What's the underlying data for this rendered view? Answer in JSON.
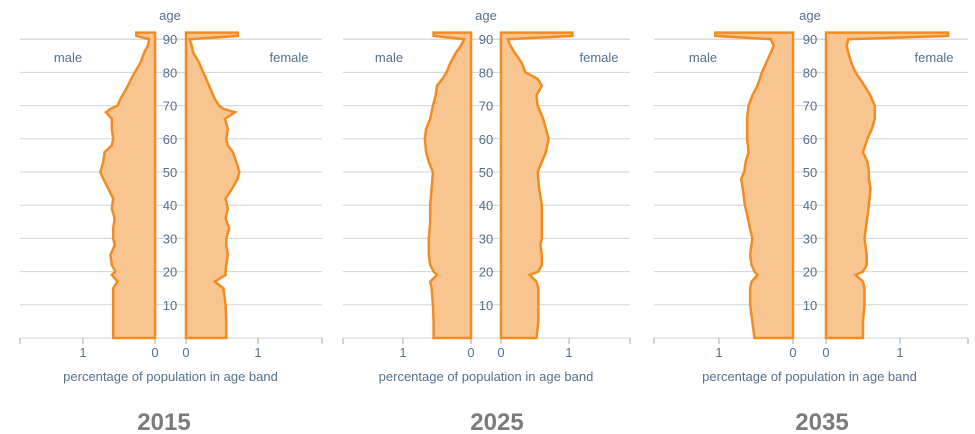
{
  "chart_data": [
    {
      "type": "area",
      "subtype": "population-pyramid",
      "year_label": "2015",
      "age_axis_label": "age",
      "age_ticks": [
        10,
        20,
        30,
        40,
        50,
        60,
        70,
        80,
        90
      ],
      "male_label": "male",
      "female_label": "female",
      "x_axis_title": "percentage of population in age band",
      "male_ticks": [
        "1",
        "0"
      ],
      "female_ticks": [
        "0",
        "1"
      ],
      "xlim": [
        0,
        1.8
      ],
      "ylim": [
        0,
        92
      ],
      "male": {
        "ages": [
          0,
          5,
          10,
          15,
          17,
          19,
          20,
          22,
          25,
          28,
          30,
          33,
          36,
          39,
          42,
          45,
          48,
          50,
          53,
          56,
          58,
          60,
          63,
          66,
          68,
          69,
          70,
          72,
          75,
          78,
          80,
          83,
          86,
          88,
          90,
          91
        ],
        "values": [
          0.58,
          0.58,
          0.58,
          0.58,
          0.52,
          0.6,
          0.55,
          0.6,
          0.62,
          0.56,
          0.58,
          0.58,
          0.56,
          0.6,
          0.58,
          0.65,
          0.72,
          0.76,
          0.72,
          0.7,
          0.6,
          0.58,
          0.6,
          0.6,
          0.68,
          0.62,
          0.52,
          0.48,
          0.4,
          0.33,
          0.28,
          0.2,
          0.15,
          0.1,
          0.08,
          0.26
        ]
      },
      "female": {
        "ages": [
          0,
          5,
          10,
          15,
          17,
          19,
          20,
          22,
          25,
          28,
          30,
          33,
          36,
          39,
          42,
          45,
          48,
          50,
          53,
          56,
          58,
          60,
          63,
          66,
          68,
          69,
          70,
          72,
          75,
          78,
          80,
          83,
          86,
          88,
          90,
          91
        ],
        "values": [
          0.56,
          0.56,
          0.55,
          0.52,
          0.4,
          0.55,
          0.55,
          0.56,
          0.58,
          0.56,
          0.56,
          0.6,
          0.55,
          0.58,
          0.55,
          0.64,
          0.72,
          0.74,
          0.7,
          0.65,
          0.58,
          0.56,
          0.58,
          0.54,
          0.68,
          0.52,
          0.46,
          0.4,
          0.34,
          0.28,
          0.24,
          0.18,
          0.1,
          0.08,
          0.05,
          0.72
        ]
      }
    },
    {
      "type": "area",
      "subtype": "population-pyramid",
      "year_label": "2025",
      "age_axis_label": "age",
      "age_ticks": [
        10,
        20,
        30,
        40,
        50,
        60,
        70,
        80,
        90
      ],
      "male_label": "male",
      "female_label": "female",
      "x_axis_title": "percentage of population in age band",
      "male_ticks": [
        "1",
        "0"
      ],
      "female_ticks": [
        "0",
        "1"
      ],
      "xlim": [
        0,
        1.8
      ],
      "ylim": [
        0,
        92
      ],
      "male": {
        "ages": [
          0,
          5,
          10,
          15,
          17,
          19,
          20,
          22,
          25,
          28,
          30,
          35,
          40,
          45,
          50,
          53,
          56,
          60,
          63,
          66,
          70,
          73,
          76,
          78,
          80,
          83,
          86,
          88,
          90,
          91
        ],
        "values": [
          0.55,
          0.55,
          0.56,
          0.58,
          0.6,
          0.5,
          0.55,
          0.6,
          0.62,
          0.62,
          0.62,
          0.6,
          0.6,
          0.58,
          0.56,
          0.62,
          0.66,
          0.68,
          0.66,
          0.6,
          0.56,
          0.52,
          0.5,
          0.42,
          0.36,
          0.3,
          0.22,
          0.15,
          0.1,
          0.55
        ]
      },
      "female": {
        "ages": [
          0,
          5,
          10,
          15,
          17,
          19,
          20,
          22,
          25,
          28,
          30,
          35,
          40,
          45,
          50,
          53,
          56,
          60,
          63,
          66,
          70,
          73,
          76,
          78,
          80,
          83,
          86,
          88,
          90,
          91
        ],
        "values": [
          0.52,
          0.55,
          0.55,
          0.55,
          0.52,
          0.42,
          0.55,
          0.6,
          0.6,
          0.58,
          0.6,
          0.6,
          0.6,
          0.56,
          0.54,
          0.6,
          0.66,
          0.7,
          0.66,
          0.62,
          0.54,
          0.52,
          0.6,
          0.54,
          0.36,
          0.3,
          0.2,
          0.14,
          0.1,
          1.05
        ]
      }
    },
    {
      "type": "area",
      "subtype": "population-pyramid",
      "year_label": "2035",
      "age_axis_label": "age",
      "age_ticks": [
        10,
        20,
        30,
        40,
        50,
        60,
        70,
        80,
        90
      ],
      "male_label": "male",
      "female_label": "female",
      "x_axis_title": "percentage of population in age band",
      "male_ticks": [
        "1",
        "0"
      ],
      "female_ticks": [
        "0",
        "1"
      ],
      "xlim": [
        0,
        1.8
      ],
      "ylim": [
        0,
        92
      ],
      "male": {
        "ages": [
          0,
          5,
          10,
          15,
          17,
          19,
          20,
          22,
          25,
          30,
          35,
          40,
          45,
          48,
          50,
          53,
          56,
          60,
          63,
          66,
          70,
          73,
          76,
          80,
          83,
          86,
          88,
          90,
          91
        ],
        "values": [
          0.52,
          0.55,
          0.58,
          0.58,
          0.56,
          0.48,
          0.52,
          0.56,
          0.58,
          0.55,
          0.6,
          0.65,
          0.68,
          0.7,
          0.66,
          0.64,
          0.6,
          0.62,
          0.62,
          0.62,
          0.6,
          0.55,
          0.48,
          0.42,
          0.36,
          0.3,
          0.26,
          0.3,
          1.05
        ]
      },
      "female": {
        "ages": [
          0,
          5,
          10,
          15,
          17,
          19,
          20,
          22,
          25,
          30,
          35,
          40,
          45,
          48,
          50,
          53,
          56,
          60,
          63,
          66,
          70,
          73,
          76,
          80,
          83,
          86,
          88,
          90,
          91
        ],
        "values": [
          0.5,
          0.5,
          0.52,
          0.52,
          0.5,
          0.4,
          0.5,
          0.55,
          0.55,
          0.52,
          0.55,
          0.58,
          0.6,
          0.58,
          0.58,
          0.56,
          0.5,
          0.56,
          0.62,
          0.66,
          0.66,
          0.6,
          0.52,
          0.4,
          0.34,
          0.3,
          0.28,
          0.3,
          1.65
        ]
      }
    }
  ],
  "colors": {
    "fill": "#f8c48f",
    "stroke": "#f28c22",
    "text": "#55718b",
    "grid": "#d3d3d3",
    "year": "#7b7b7b"
  }
}
